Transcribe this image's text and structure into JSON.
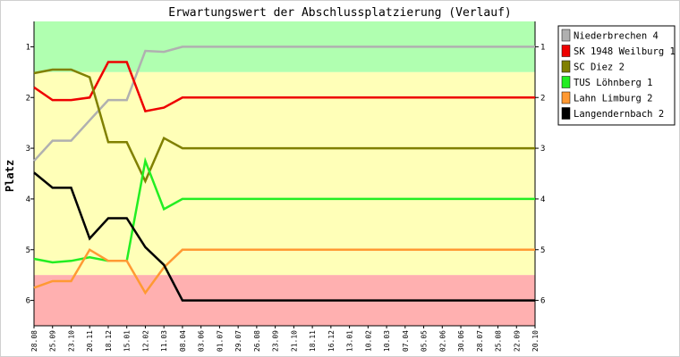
{
  "chart_data": {
    "type": "line",
    "title": "Erwartungswert der Abschlussplatzierung (Verlauf)",
    "ylabel": "Platz",
    "xlabel": "",
    "ylim": [
      6.5,
      0.5
    ],
    "y_inverted": true,
    "yticks": [
      1,
      2,
      3,
      4,
      5,
      6
    ],
    "grid": false,
    "legend_position": "right",
    "bands": [
      {
        "from": 0.5,
        "to": 1.5,
        "color": "#b0ffb0"
      },
      {
        "from": 1.5,
        "to": 5.5,
        "color": "#ffffb8"
      },
      {
        "from": 5.5,
        "to": 6.5,
        "color": "#ffb0b0"
      }
    ],
    "x": [
      "28.08",
      "25.09",
      "23.10",
      "20.11",
      "18.12",
      "15.01",
      "12.02",
      "11.03",
      "08.04",
      "03.06",
      "01.07",
      "29.07",
      "26.08",
      "23.09",
      "21.10",
      "18.11",
      "16.12",
      "13.01",
      "10.02",
      "10.03",
      "07.04",
      "05.05",
      "02.06",
      "30.06",
      "28.07",
      "25.08",
      "22.09",
      "20.10"
    ],
    "series": [
      {
        "name": "Niederbrechen 4",
        "color": "#b0b0b0",
        "values": [
          3.25,
          2.85,
          2.85,
          2.45,
          2.05,
          2.05,
          1.08,
          1.1,
          1.0,
          1.0,
          1.0,
          1.0,
          1.0,
          1.0,
          1.0,
          1.0,
          1.0,
          1.0,
          1.0,
          1.0,
          1.0,
          1.0,
          1.0,
          1.0,
          1.0,
          1.0,
          1.0,
          1.0
        ]
      },
      {
        "name": "SK 1948 Weilburg 1",
        "color": "#ee0000",
        "values": [
          1.8,
          2.05,
          2.05,
          2.0,
          1.3,
          1.3,
          2.27,
          2.2,
          2.0,
          2.0,
          2.0,
          2.0,
          2.0,
          2.0,
          2.0,
          2.0,
          2.0,
          2.0,
          2.0,
          2.0,
          2.0,
          2.0,
          2.0,
          2.0,
          2.0,
          2.0,
          2.0,
          2.0
        ]
      },
      {
        "name": "SC Diez 2",
        "color": "#808000",
        "values": [
          1.52,
          1.45,
          1.45,
          1.6,
          2.88,
          2.88,
          3.65,
          2.8,
          3.0,
          3.0,
          3.0,
          3.0,
          3.0,
          3.0,
          3.0,
          3.0,
          3.0,
          3.0,
          3.0,
          3.0,
          3.0,
          3.0,
          3.0,
          3.0,
          3.0,
          3.0,
          3.0,
          3.0
        ]
      },
      {
        "name": "TUS Löhnberg 1",
        "color": "#22ee22",
        "values": [
          5.18,
          5.25,
          5.22,
          5.15,
          5.22,
          5.22,
          3.25,
          4.2,
          4.0,
          4.0,
          4.0,
          4.0,
          4.0,
          4.0,
          4.0,
          4.0,
          4.0,
          4.0,
          4.0,
          4.0,
          4.0,
          4.0,
          4.0,
          4.0,
          4.0,
          4.0,
          4.0,
          4.0
        ]
      },
      {
        "name": "Lahn Limburg 2",
        "color": "#ff9933",
        "values": [
          5.75,
          5.62,
          5.62,
          5.0,
          5.22,
          5.22,
          5.85,
          5.35,
          5.0,
          5.0,
          5.0,
          5.0,
          5.0,
          5.0,
          5.0,
          5.0,
          5.0,
          5.0,
          5.0,
          5.0,
          5.0,
          5.0,
          5.0,
          5.0,
          5.0,
          5.0,
          5.0,
          5.0
        ]
      },
      {
        "name": "Langendernbach 2",
        "color": "#000000",
        "values": [
          3.48,
          3.78,
          3.78,
          4.78,
          4.38,
          4.38,
          4.95,
          5.3,
          6.0,
          6.0,
          6.0,
          6.0,
          6.0,
          6.0,
          6.0,
          6.0,
          6.0,
          6.0,
          6.0,
          6.0,
          6.0,
          6.0,
          6.0,
          6.0,
          6.0,
          6.0,
          6.0,
          6.0
        ]
      }
    ]
  }
}
